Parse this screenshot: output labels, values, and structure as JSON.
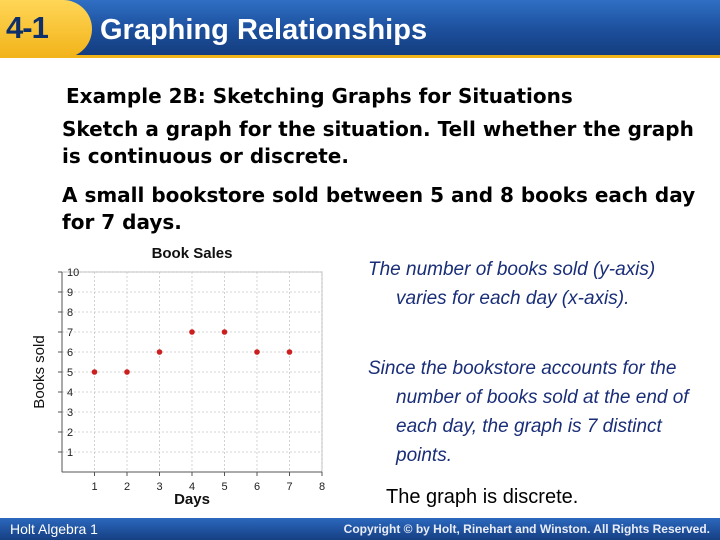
{
  "header": {
    "lesson_number": "4-1",
    "lesson_title": "Graphing Relationships",
    "colors": {
      "bar": "#1c4f9c",
      "badge": "#f2b319"
    }
  },
  "example": {
    "title": "Example 2B: Sketching Graphs for Situations",
    "prompt": "Sketch a graph for the situation. Tell whether the graph is continuous or discrete.",
    "situation": "A small bookstore sold between 5 and 8 books each day for 7 days."
  },
  "notes": {
    "axes": "The number of books sold (y-axis) varies for each day (x-axis).",
    "reason": "Since the bookstore accounts for the number of books sold at the end of each day, the graph is 7 distinct points.",
    "conclusion": "The graph is discrete."
  },
  "footer": {
    "left": "Holt Algebra 1",
    "right": "Copyright © by Holt, Rinehart and Winston. All Rights Reserved."
  },
  "chart_data": {
    "type": "scatter",
    "title": "Book Sales",
    "xlabel": "Days",
    "ylabel": "Books sold",
    "xlim": [
      0,
      8
    ],
    "ylim": [
      0,
      10
    ],
    "x_ticks": [
      1,
      2,
      3,
      4,
      5,
      6,
      7,
      8
    ],
    "y_ticks": [
      1,
      2,
      3,
      4,
      5,
      6,
      7,
      8,
      9,
      10
    ],
    "grid": true,
    "point_color": "#cc1f1f",
    "series": [
      {
        "x": [
          1,
          2,
          3,
          4,
          5,
          6,
          7
        ],
        "y": [
          5,
          5,
          6,
          7,
          7,
          6,
          6
        ]
      }
    ]
  }
}
